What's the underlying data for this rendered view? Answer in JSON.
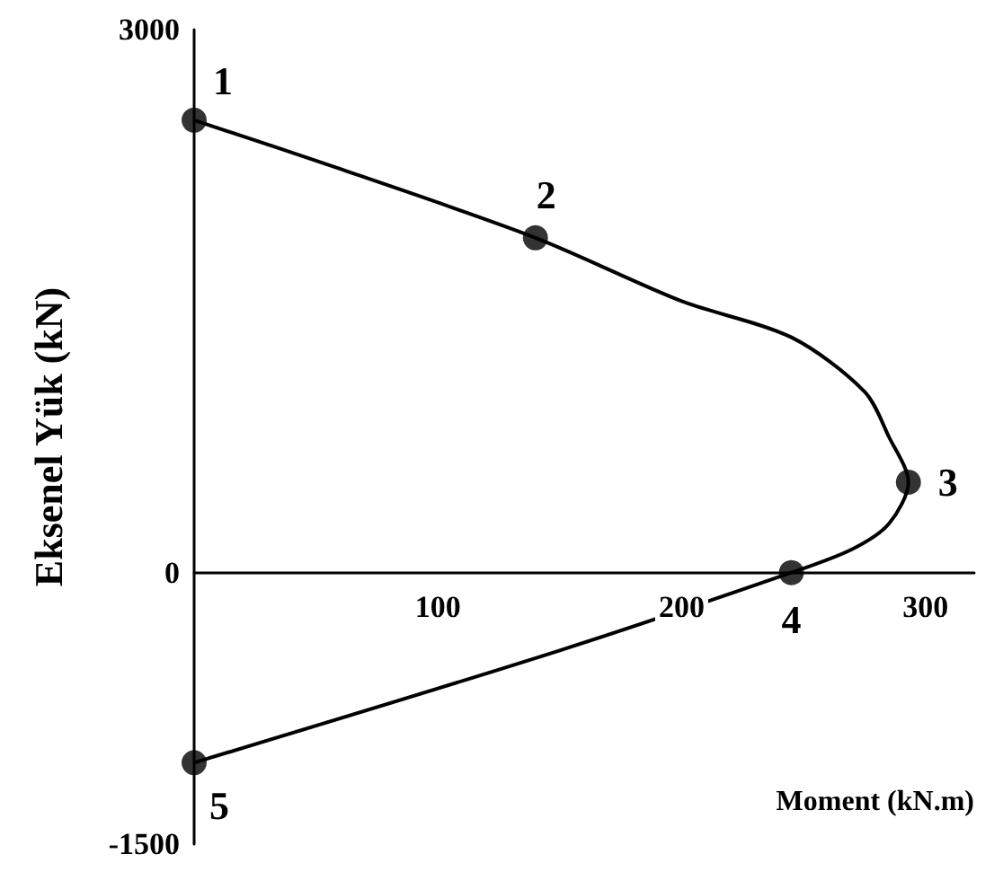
{
  "chart_data": {
    "type": "line",
    "xlabel": "Moment (kN.m)",
    "ylabel": "Eksenel Yük (kN)",
    "xlim": [
      0,
      320
    ],
    "xticks": [
      100,
      200,
      300
    ],
    "ylim": [
      -1500,
      3000
    ],
    "yticks": [
      -1500,
      0,
      3000
    ],
    "series": [
      {
        "color": "#000000",
        "marker": "none",
        "x": [
          0,
          60,
          140,
          200,
          245,
          275,
          285,
          293,
          285,
          270,
          245,
          150,
          0
        ],
        "values": [
          2500,
          2230,
          1850,
          1500,
          1300,
          1000,
          750,
          500,
          270,
          130,
          0,
          -430,
          -1050
        ]
      },
      {
        "type": "scatter",
        "color": "#000000",
        "marker": "circle",
        "x": [
          0,
          140,
          293,
          245,
          0
        ],
        "values": [
          2500,
          1850,
          500,
          0,
          -1050
        ]
      }
    ],
    "annotations": [
      {
        "text": "1",
        "x": 0,
        "y": 2500
      },
      {
        "text": "2",
        "x": 140,
        "y": 1850
      },
      {
        "text": "3",
        "x": 293,
        "y": 500
      },
      {
        "text": "4",
        "x": 245,
        "y": 0
      },
      {
        "text": "5",
        "x": 0,
        "y": -1050
      }
    ]
  }
}
